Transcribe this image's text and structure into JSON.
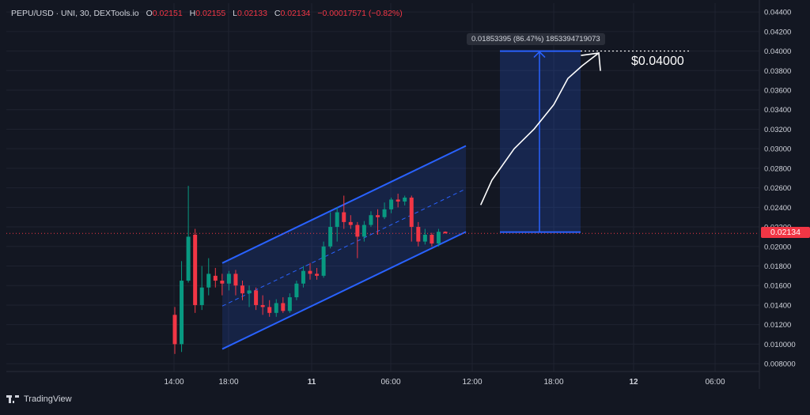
{
  "legend": {
    "symbol": "PEPU/USD · UNI, 30, DEXTools.io",
    "open_label": "O",
    "open": "0.02151",
    "high_label": "H",
    "high": "0.02155",
    "low_label": "L",
    "low": "0.02133",
    "close_label": "C",
    "close": "0.02134",
    "change": "−0.00017571 (−0.82%)"
  },
  "current_price_label": "0.02134",
  "measure_label": "0.01853395 (86.47%) 1853394719073",
  "target_label": "$0.04000",
  "branding": "TradingView",
  "colors": {
    "background": "#131722",
    "up": "#089981",
    "down": "#f23645",
    "channel": "#2962ff",
    "text": "#d1d4dc",
    "grid": "#1f2330"
  },
  "chart_data": {
    "type": "candlestick",
    "xaxis_ticks": [
      "14:00",
      "18:00",
      "11",
      "06:00",
      "12:00",
      "18:00",
      "12",
      "06:00"
    ],
    "yaxis_ticks": [
      "0.04400",
      "0.04200",
      "0.04000",
      "0.03800",
      "0.03600",
      "0.03400",
      "0.03200",
      "0.03000",
      "0.02800",
      "0.02600",
      "0.02400",
      "0.02200",
      "0.02000",
      "0.01800",
      "0.01600",
      "0.01400",
      "0.01200",
      "0.010000",
      "0.008000"
    ],
    "ylim": [
      0.0072,
      0.0449
    ],
    "current_price": 0.02134,
    "candles": [
      [
        0.013,
        0.01,
        0.0138,
        0.009
      ],
      [
        0.01,
        0.0165,
        0.0185,
        0.0092
      ],
      [
        0.0165,
        0.021,
        0.0262,
        0.0163
      ],
      [
        0.0212,
        0.014,
        0.0218,
        0.0132
      ],
      [
        0.014,
        0.0158,
        0.018,
        0.0135
      ],
      [
        0.0158,
        0.0172,
        0.0188,
        0.015
      ],
      [
        0.017,
        0.0165,
        0.0178,
        0.0158
      ],
      [
        0.0165,
        0.0162,
        0.0172,
        0.015
      ],
      [
        0.0162,
        0.0172,
        0.0175,
        0.0155
      ],
      [
        0.0172,
        0.016,
        0.0176,
        0.015
      ],
      [
        0.016,
        0.0152,
        0.0165,
        0.0145
      ],
      [
        0.0152,
        0.0155,
        0.016,
        0.0138
      ],
      [
        0.0155,
        0.014,
        0.0158,
        0.0135
      ],
      [
        0.014,
        0.0138,
        0.015,
        0.013
      ],
      [
        0.0138,
        0.0132,
        0.0145,
        0.0128
      ],
      [
        0.0132,
        0.0142,
        0.0146,
        0.0128
      ],
      [
        0.0142,
        0.0134,
        0.0148,
        0.0132
      ],
      [
        0.0134,
        0.0148,
        0.0152,
        0.0132
      ],
      [
        0.0148,
        0.0162,
        0.0165,
        0.0145
      ],
      [
        0.0162,
        0.0175,
        0.018,
        0.0158
      ],
      [
        0.0175,
        0.0172,
        0.0183,
        0.0166
      ],
      [
        0.0172,
        0.017,
        0.0178,
        0.0166
      ],
      [
        0.017,
        0.02,
        0.0205,
        0.0168
      ],
      [
        0.02,
        0.022,
        0.0235,
        0.0198
      ],
      [
        0.022,
        0.0235,
        0.024,
        0.0205
      ],
      [
        0.0235,
        0.0225,
        0.0252,
        0.0218
      ],
      [
        0.0225,
        0.0222,
        0.0232,
        0.0218
      ],
      [
        0.0222,
        0.021,
        0.0225,
        0.0188
      ],
      [
        0.021,
        0.0222,
        0.0226,
        0.0205
      ],
      [
        0.0222,
        0.0232,
        0.0236,
        0.022
      ],
      [
        0.0232,
        0.023,
        0.0238,
        0.0212
      ],
      [
        0.023,
        0.0238,
        0.0245,
        0.0228
      ],
      [
        0.0238,
        0.0248,
        0.025,
        0.0234
      ],
      [
        0.0248,
        0.0246,
        0.0254,
        0.024
      ],
      [
        0.0246,
        0.025,
        0.0252,
        0.0242
      ],
      [
        0.025,
        0.022,
        0.0252,
        0.0205
      ],
      [
        0.022,
        0.0205,
        0.0225,
        0.02
      ],
      [
        0.0205,
        0.0212,
        0.0218,
        0.0202
      ],
      [
        0.0212,
        0.0203,
        0.0214,
        0.02
      ],
      [
        0.0203,
        0.0215,
        0.0218,
        0.02
      ],
      [
        0.02151,
        0.02134,
        0.02155,
        0.02133
      ]
    ],
    "channel": {
      "upper": [
        [
          0,
          0.0183
        ],
        [
          1,
          0.0303
        ]
      ],
      "lower": [
        [
          0,
          0.0095
        ],
        [
          1,
          0.0215
        ]
      ],
      "mid": [
        [
          0,
          0.0139
        ],
        [
          1,
          0.0259
        ]
      ]
    },
    "projection": {
      "from_price": 0.02147,
      "to_price": 0.04,
      "change": "0.01853395",
      "percent": "86.47%"
    },
    "arrow_path": [
      0.0243,
      0.0268,
      0.03,
      0.032,
      0.0345,
      0.0372,
      0.0385,
      0.0398
    ]
  }
}
